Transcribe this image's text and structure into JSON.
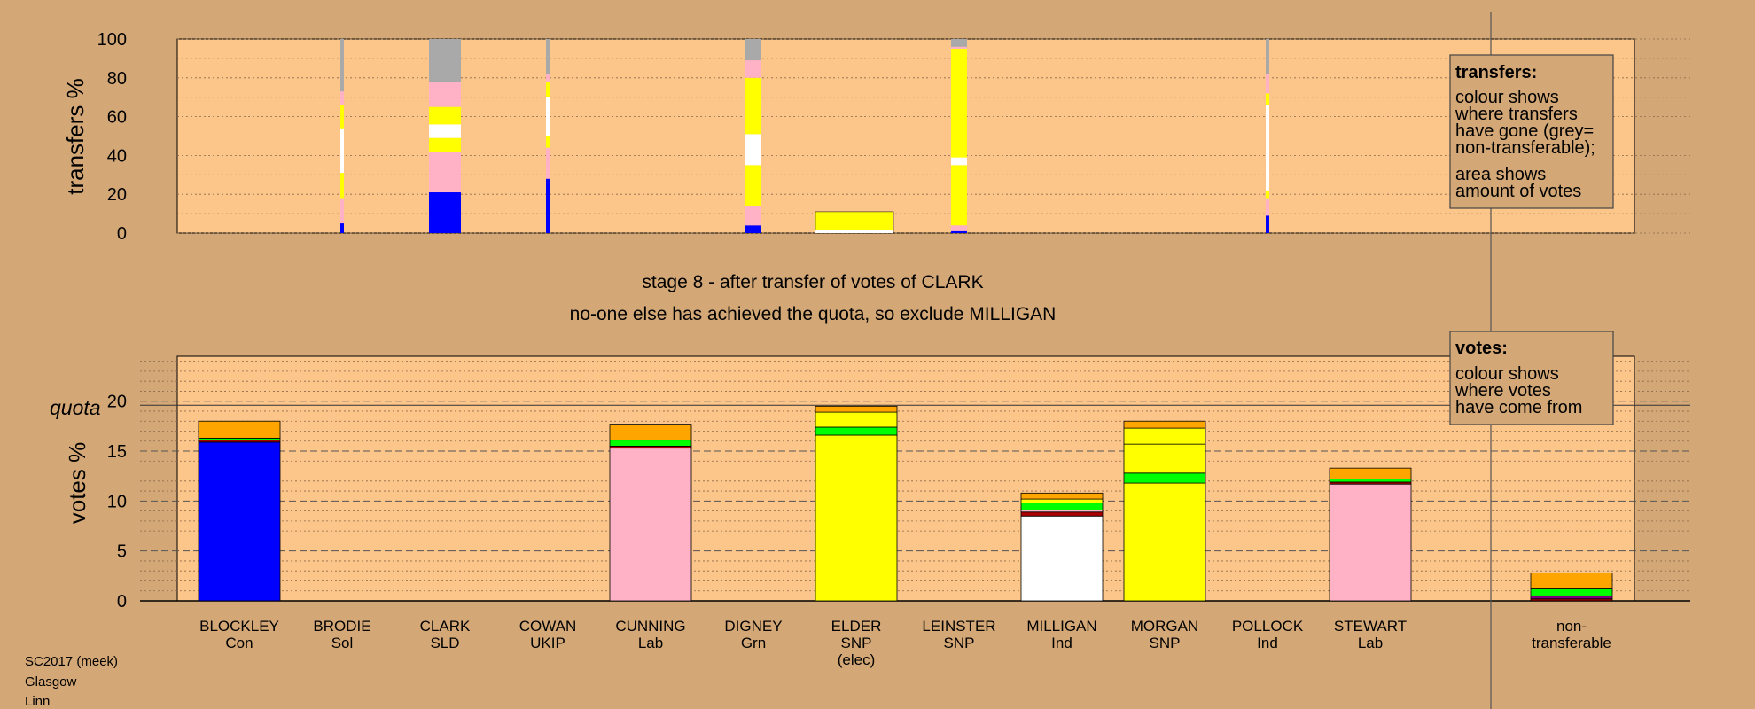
{
  "colors": {
    "background": "#d4a876",
    "plot_bg": "#fcc58a",
    "Con": "#0000ff",
    "Lab": "#ffb1c6",
    "SNP": "#ffff00",
    "Ind": "#ffffff",
    "Grn": "#00ff00",
    "SLD": "#ffa500",
    "UKIP": "#800080",
    "Sol": "#aa0000",
    "nontransferable": "#a9a9a9"
  },
  "stage_text": {
    "line1": "stage 8 - after transfer of votes of CLARK",
    "line2": "no-one else has achieved the quota, so exclude MILLIGAN"
  },
  "footer": {
    "line1": "SC2017 (meek)",
    "line2": "Glasgow",
    "line3": "Linn"
  },
  "legend_transfers": {
    "title": "transfers:",
    "lines": [
      "colour shows",
      "where transfers",
      "have gone (grey=",
      "non-transferable);"
    ],
    "lines2": [
      "area shows",
      "amount of votes"
    ]
  },
  "legend_votes": {
    "title": "votes:",
    "lines": [
      "colour shows",
      "where votes",
      "have come from"
    ]
  },
  "chart_data": [
    {
      "type": "bar",
      "ylabel": "transfers %",
      "ylim": [
        0,
        100
      ],
      "yticks": [
        0,
        20,
        40,
        60,
        80,
        100
      ],
      "grid": true,
      "note": "stacked transfer bars; width shows amount of votes",
      "bars": [
        {
          "candidate": "BRODIE",
          "width": "thin",
          "segments": [
            {
              "party": "Con",
              "value": 5
            },
            {
              "party": "Lab",
              "value": 13
            },
            {
              "party": "SNP",
              "value": 13
            },
            {
              "party": "Ind",
              "value": 23
            },
            {
              "party": "SNP",
              "value": 12
            },
            {
              "party": "Lab",
              "value": 7
            },
            {
              "party": "nontransferable",
              "value": 27
            }
          ]
        },
        {
          "candidate": "CLARK",
          "width": "wide",
          "segments": [
            {
              "party": "Con",
              "value": 21
            },
            {
              "party": "Lab",
              "value": 21
            },
            {
              "party": "SNP",
              "value": 7
            },
            {
              "party": "Ind",
              "value": 7
            },
            {
              "party": "SNP",
              "value": 9
            },
            {
              "party": "Lab",
              "value": 13
            },
            {
              "party": "nontransferable",
              "value": 22
            }
          ]
        },
        {
          "candidate": "COWAN",
          "width": "thin",
          "segments": [
            {
              "party": "Con",
              "value": 28
            },
            {
              "party": "Lab",
              "value": 16
            },
            {
              "party": "SNP",
              "value": 6
            },
            {
              "party": "Ind",
              "value": 20
            },
            {
              "party": "SNP",
              "value": 8
            },
            {
              "party": "Lab",
              "value": 4
            },
            {
              "party": "nontransferable",
              "value": 18
            }
          ]
        },
        {
          "candidate": "DIGNEY",
          "width": "medium",
          "segments": [
            {
              "party": "Con",
              "value": 4
            },
            {
              "party": "Lab",
              "value": 10
            },
            {
              "party": "SNP",
              "value": 21
            },
            {
              "party": "Ind",
              "value": 16
            },
            {
              "party": "SNP",
              "value": 29
            },
            {
              "party": "Lab",
              "value": 9
            },
            {
              "party": "nontransferable",
              "value": 11
            }
          ]
        },
        {
          "candidate": "LEINSTER",
          "width": "medium",
          "segments": [
            {
              "party": "Con",
              "value": 1
            },
            {
              "party": "Lab",
              "value": 3
            },
            {
              "party": "SNP",
              "value": 31
            },
            {
              "party": "Ind",
              "value": 4
            },
            {
              "party": "SNP",
              "value": 56
            },
            {
              "party": "Lab",
              "value": 1
            },
            {
              "party": "nontransferable",
              "value": 4
            }
          ]
        },
        {
          "candidate": "POLLOCK",
          "width": "thin",
          "segments": [
            {
              "party": "Con",
              "value": 9
            },
            {
              "party": "Lab",
              "value": 9
            },
            {
              "party": "SNP",
              "value": 4
            },
            {
              "party": "Ind",
              "value": 44
            },
            {
              "party": "SNP",
              "value": 6
            },
            {
              "party": "Lab",
              "value": 10
            },
            {
              "party": "nontransferable",
              "value": 18
            }
          ]
        }
      ]
    },
    {
      "type": "bar",
      "ylabel": "votes %",
      "ylim": [
        0,
        24.5
      ],
      "yticks": [
        0,
        5,
        10,
        15,
        20
      ],
      "quota": 19.6,
      "quota_label": "quota",
      "grid": true,
      "categories": [
        {
          "name": "BLOCKLEY",
          "party": "Con"
        },
        {
          "name": "BRODIE",
          "party": "Sol"
        },
        {
          "name": "CLARK",
          "party": "SLD"
        },
        {
          "name": "COWAN",
          "party": "UKIP"
        },
        {
          "name": "CUNNING",
          "party": "Lab"
        },
        {
          "name": "DIGNEY",
          "party": "Grn"
        },
        {
          "name": "ELDER",
          "party": "SNP",
          "note": "(elec)"
        },
        {
          "name": "LEINSTER",
          "party": "SNP"
        },
        {
          "name": "MILLIGAN",
          "party": "Ind"
        },
        {
          "name": "MORGAN",
          "party": "SNP"
        },
        {
          "name": "POLLOCK",
          "party": "Ind"
        },
        {
          "name": "STEWART",
          "party": "Lab"
        }
      ],
      "nontransferable_label": [
        "non-",
        "transferable"
      ],
      "stacks": [
        [
          {
            "party": "Con",
            "value": 15.9
          },
          {
            "party": "Sol",
            "value": 0.2
          },
          {
            "party": "Grn",
            "value": 0.2
          },
          {
            "party": "SLD",
            "value": 1.7
          }
        ],
        [],
        [],
        [],
        [
          {
            "party": "Lab",
            "value": 15.3
          },
          {
            "party": "Sol",
            "value": 0.2
          },
          {
            "party": "Grn",
            "value": 0.6
          },
          {
            "party": "SLD",
            "value": 1.6
          }
        ],
        [],
        [
          {
            "party": "SNP",
            "value": 16.6
          },
          {
            "party": "Grn",
            "value": 0.8
          },
          {
            "party": "SNP",
            "value": 1.5
          },
          {
            "party": "SLD",
            "value": 0.6
          }
        ],
        [],
        [
          {
            "party": "Ind",
            "value": 8.5
          },
          {
            "party": "Sol",
            "value": 0.4
          },
          {
            "party": "Lab",
            "value": 0.2
          },
          {
            "party": "Grn",
            "value": 0.7
          },
          {
            "party": "SNP",
            "value": 0.4
          },
          {
            "party": "SLD",
            "value": 0.6
          }
        ],
        [
          {
            "party": "SNP",
            "value": 11.8
          },
          {
            "party": "Grn",
            "value": 1.0
          },
          {
            "party": "SNP",
            "value": 2.9
          },
          {
            "party": "SNP",
            "value": 1.6
          },
          {
            "party": "SLD",
            "value": 0.7
          }
        ],
        [],
        [
          {
            "party": "Lab",
            "value": 11.7
          },
          {
            "party": "Sol",
            "value": 0.2
          },
          {
            "party": "Grn",
            "value": 0.3
          },
          {
            "party": "SLD",
            "value": 1.1
          }
        ]
      ],
      "nontransferable_stack": [
        {
          "party": "Sol",
          "value": 0.2
        },
        {
          "party": "UKIP",
          "value": 0.3
        },
        {
          "party": "Grn",
          "value": 0.7
        },
        {
          "party": "SLD",
          "value": 1.6
        }
      ]
    }
  ]
}
